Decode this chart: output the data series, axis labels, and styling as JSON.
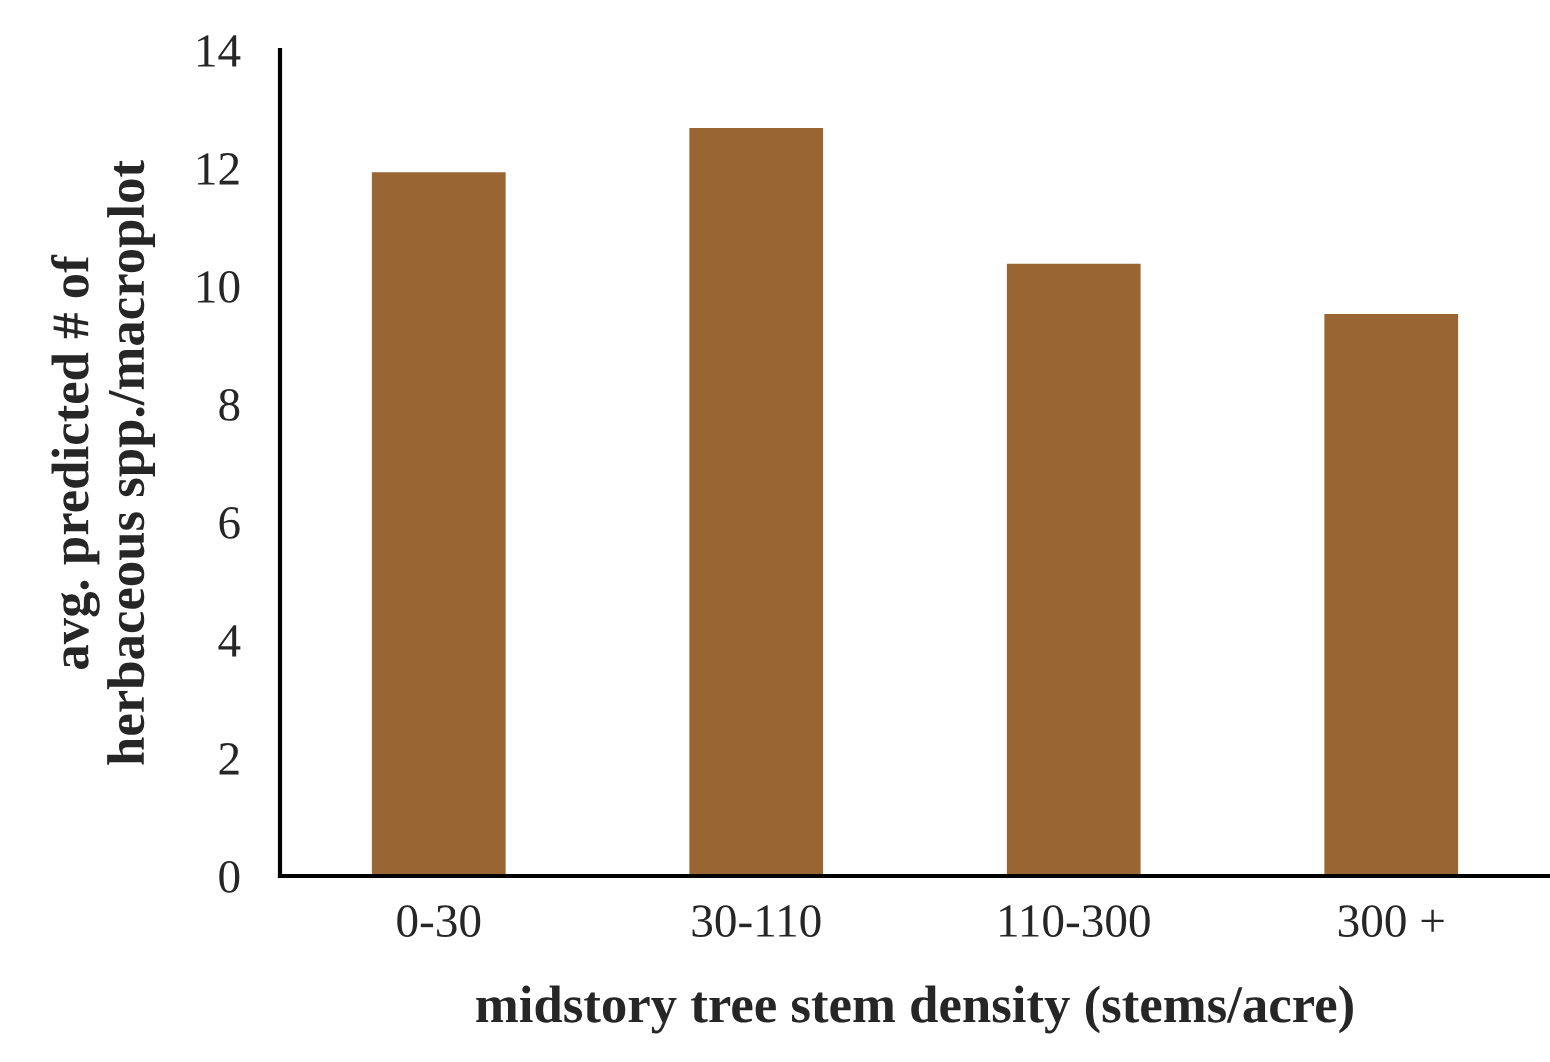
{
  "chart_data": {
    "type": "bar",
    "xlabel": "midstory tree stem density (stems/acre)",
    "ylabel": "avg. predicted # of\nherbaceous spp./macroplot",
    "categories": [
      "0-30",
      "30-110",
      "110-300",
      "300 +"
    ],
    "values": [
      11.95,
      12.7,
      10.4,
      9.55
    ],
    "color": "#996633",
    "ylim": [
      0,
      14
    ],
    "yticks": [
      0,
      2,
      4,
      6,
      8,
      10,
      12,
      14
    ],
    "grid": false
  }
}
